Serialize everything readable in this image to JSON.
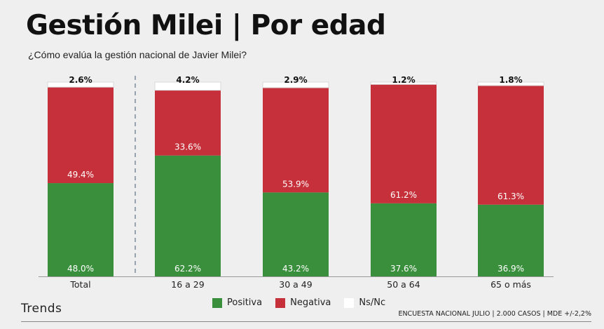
{
  "title": "Gestión Milei | Por edad",
  "subtitle": "¿Cómo evalúa la gestión nacional de Javier Milei?",
  "brand": "Trends",
  "source": "ENCUESTA NACIONAL JULIO | 2.000 CASOS | MDE +/-2,2%",
  "colors": {
    "positiva": "#3a8f3c",
    "negativa": "#c5303a",
    "nsnc": "#ffffff"
  },
  "legend": [
    {
      "label": "Positiva",
      "color": "#3a8f3c"
    },
    {
      "label": "Negativa",
      "color": "#c5303a"
    },
    {
      "label": "Ns/Nc",
      "color": "#ffffff"
    }
  ],
  "chart_data": {
    "type": "bar",
    "stacked": true,
    "categories": [
      "Total",
      "16 a 29",
      "30 a 49",
      "50 a 64",
      "65 o más"
    ],
    "series": [
      {
        "name": "Positiva",
        "values": [
          48.0,
          62.2,
          43.2,
          37.6,
          36.9
        ],
        "labels": [
          "48.0%",
          "62.2%",
          "43.2%",
          "37.6%",
          "36.9%"
        ]
      },
      {
        "name": "Negativa",
        "values": [
          49.4,
          33.6,
          53.9,
          61.2,
          61.3
        ],
        "labels": [
          "49.4%",
          "33.6%",
          "53.9%",
          "61.2%",
          "61.3%"
        ]
      },
      {
        "name": "Ns/Nc",
        "values": [
          2.6,
          4.2,
          2.9,
          1.2,
          1.8
        ],
        "labels": [
          "2.6%",
          "4.2%",
          "2.9%",
          "1.2%",
          "1.8%"
        ]
      }
    ],
    "ylim": [
      0,
      100
    ],
    "grid": false,
    "legend_position": "bottom"
  }
}
